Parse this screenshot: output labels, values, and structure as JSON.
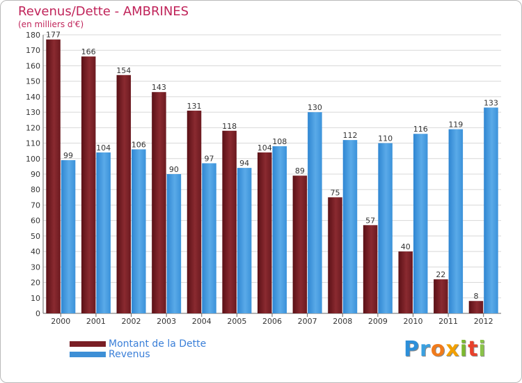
{
  "colors": {
    "debt": "#7a1f25",
    "revenue": "#3d8fd6",
    "title": "#c0245a",
    "legend_text": "#3a7fd8"
  },
  "logo": {
    "letters": [
      {
        "char": "P",
        "color": "#2d8fd9"
      },
      {
        "char": "r",
        "color": "#3aa0e0"
      },
      {
        "char": "o",
        "color": "#f07b1b"
      },
      {
        "char": "x",
        "color": "#f2a000"
      },
      {
        "char": "i",
        "color": "#7cb82f"
      },
      {
        "char": "t",
        "color": "#e8412c"
      },
      {
        "char": "i",
        "color": "#8bc34a"
      }
    ]
  },
  "chart_data": {
    "type": "bar",
    "title": "Revenus/Dette - AMBRINES",
    "subtitle": "(en milliers d'€)",
    "xlabel": "",
    "ylabel": "",
    "ylim": [
      0,
      180
    ],
    "y_ticks": [
      0,
      10,
      20,
      30,
      40,
      50,
      60,
      70,
      80,
      90,
      100,
      110,
      120,
      130,
      140,
      150,
      160,
      170,
      180
    ],
    "grid": true,
    "legend_position": "bottom-left",
    "categories": [
      "2000",
      "2001",
      "2002",
      "2003",
      "2004",
      "2005",
      "2006",
      "2007",
      "2008",
      "2009",
      "2010",
      "2011",
      "2012"
    ],
    "series": [
      {
        "name": "Montant de la Dette",
        "color": "#7a1f25",
        "values": [
          177,
          166,
          154,
          143,
          131,
          118,
          104,
          89,
          75,
          57,
          40,
          22,
          8
        ]
      },
      {
        "name": "Revenus",
        "color": "#3d8fd6",
        "values": [
          99,
          104,
          106,
          90,
          97,
          94,
          108,
          130,
          112,
          110,
          116,
          119,
          133
        ]
      }
    ]
  }
}
